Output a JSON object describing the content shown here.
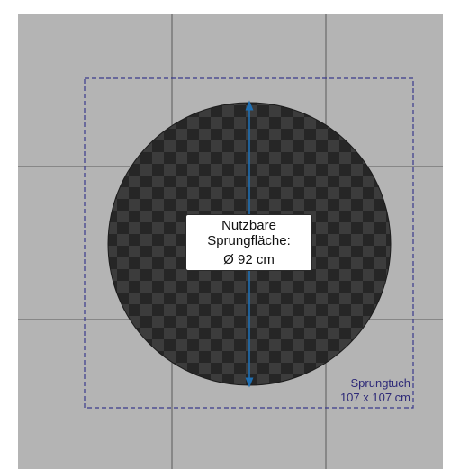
{
  "jump_area": {
    "line1": "Nutzbare",
    "line2": "Sprungfläche:",
    "diameter": "Ø 92 cm"
  },
  "mat": {
    "line1": "Sprungtuch",
    "line2": "107 x 107 cm"
  },
  "colors": {
    "page_background": "#ffffff",
    "floor_tile": "#b4b4b4",
    "tile_grout": "#5a5a5a",
    "checker_dark": "#262626",
    "checker_light": "#3c3c3c",
    "arrow": "#1f6fb2",
    "mat_outline": "#3a3a8c",
    "mat_text": "#2e2a78"
  }
}
